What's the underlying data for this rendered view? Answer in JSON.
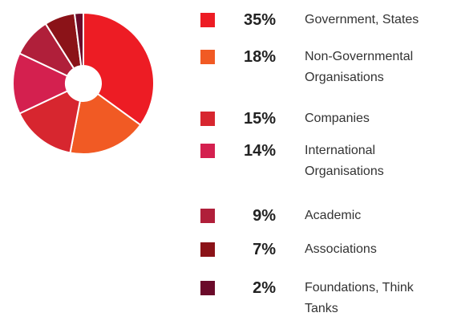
{
  "chart_data": {
    "type": "pie",
    "categories": [
      "Government, States",
      "Non-Governmental Organisations",
      "Companies",
      "International Organisations",
      "Academic",
      "Associations",
      "Foundations, Think Tanks"
    ],
    "values": [
      35,
      18,
      15,
      14,
      9,
      7,
      2
    ],
    "value_labels": [
      "35%",
      "18%",
      "15%",
      "14%",
      "9%",
      "7%",
      "2%"
    ],
    "colors": [
      "#ed1c24",
      "#f15a24",
      "#d7262f",
      "#d4204f",
      "#b01f3a",
      "#8b1318",
      "#6b0a2a"
    ]
  }
}
